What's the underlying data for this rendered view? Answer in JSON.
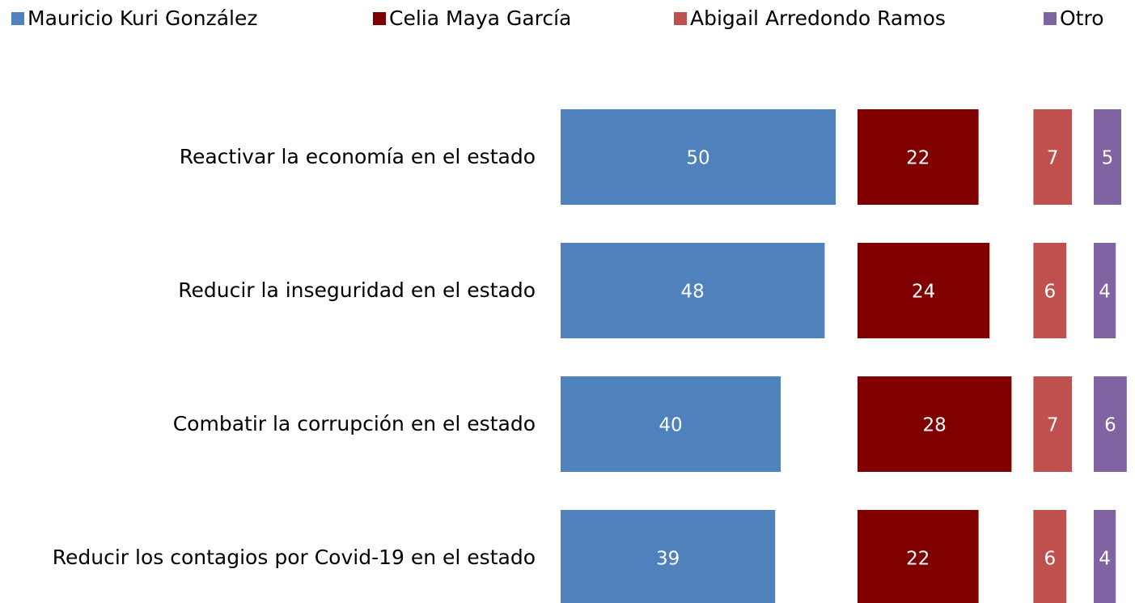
{
  "chart_data": {
    "type": "bar",
    "orientation": "horizontal",
    "categories": [
      "Reactivar la economía en el estado",
      "Reducir la inseguridad en el estado",
      "Combatir la corrupción en el estado",
      "Reducir los contagios por Covid-19 en el estado"
    ],
    "series": [
      {
        "name": "Mauricio Kuri González",
        "color": "#4f81bd",
        "values": [
          50,
          48,
          40,
          39
        ]
      },
      {
        "name": "Celia Maya García",
        "color": "#800000",
        "values": [
          22,
          24,
          28,
          22
        ]
      },
      {
        "name": "Abigail Arredondo Ramos",
        "color": "#c0504d",
        "values": [
          7,
          6,
          7,
          6
        ]
      },
      {
        "name": "Otro",
        "color": "#8064a2",
        "values": [
          5,
          4,
          6,
          4
        ]
      }
    ],
    "legend": "top",
    "grid": false
  }
}
